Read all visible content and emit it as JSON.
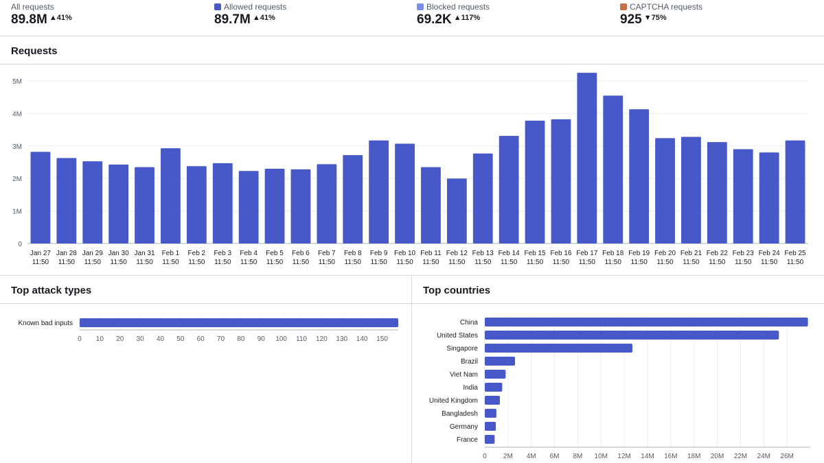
{
  "stats": [
    {
      "label": "All requests",
      "value": "89.8M",
      "change": "41%",
      "direction": "up",
      "swatch": null
    },
    {
      "label": "Allowed requests",
      "value": "89.7M",
      "change": "41%",
      "direction": "up",
      "swatch": "#4759c9"
    },
    {
      "label": "Blocked requests",
      "value": "69.2K",
      "change": "117%",
      "direction": "up",
      "swatch": "#7d8ee6"
    },
    {
      "label": "CAPTCHA requests",
      "value": "925",
      "change": "75%",
      "direction": "down",
      "swatch": "#c8714a"
    }
  ],
  "requests_panel": {
    "title": "Requests"
  },
  "attack_panel": {
    "title": "Top attack types"
  },
  "countries_panel": {
    "title": "Top countries"
  },
  "chart_data": [
    {
      "type": "bar",
      "title": "Requests",
      "ylabel": "",
      "xlabel": "",
      "ylim": [
        0,
        5000000
      ],
      "yticks": [
        0,
        1000000,
        2000000,
        3000000,
        4000000,
        5000000
      ],
      "ytick_labels": [
        "0",
        "1M",
        "2M",
        "3M",
        "4M",
        "5M"
      ],
      "color": "#4759c9",
      "time_label": "11:50",
      "categories": [
        "Jan 27",
        "Jan 28",
        "Jan 29",
        "Jan 30",
        "Jan 31",
        "Feb 1",
        "Feb 2",
        "Feb 3",
        "Feb 4",
        "Feb 5",
        "Feb 6",
        "Feb 7",
        "Feb 8",
        "Feb 9",
        "Feb 10",
        "Feb 11",
        "Feb 12",
        "Feb 13",
        "Feb 14",
        "Feb 15",
        "Feb 16",
        "Feb 17",
        "Feb 18",
        "Feb 19",
        "Feb 20",
        "Feb 21",
        "Feb 22",
        "Feb 23",
        "Feb 24",
        "Feb 25"
      ],
      "values": [
        2820000,
        2630000,
        2530000,
        2430000,
        2350000,
        2930000,
        2380000,
        2470000,
        2230000,
        2300000,
        2280000,
        2440000,
        2720000,
        3170000,
        3070000,
        2350000,
        2000000,
        2770000,
        3310000,
        3780000,
        3820000,
        5250000,
        4550000,
        4130000,
        3240000,
        3280000,
        3120000,
        2900000,
        2800000,
        3170000
      ]
    },
    {
      "type": "bar",
      "orientation": "horizontal",
      "title": "Top attack types",
      "color": "#4759c9",
      "xlim": [
        0,
        158
      ],
      "xticks": [
        0,
        10,
        20,
        30,
        40,
        50,
        60,
        70,
        80,
        90,
        100,
        110,
        120,
        130,
        140,
        150
      ],
      "categories": [
        "Known bad inputs"
      ],
      "values": [
        158
      ]
    },
    {
      "type": "bar",
      "orientation": "horizontal",
      "title": "Top countries",
      "color": "#4759c9",
      "xlim": [
        0,
        28000000
      ],
      "xticks": [
        0,
        2000000,
        4000000,
        6000000,
        8000000,
        10000000,
        12000000,
        14000000,
        16000000,
        18000000,
        20000000,
        22000000,
        24000000,
        26000000
      ],
      "xtick_labels": [
        "0",
        "2M",
        "4M",
        "6M",
        "8M",
        "10M",
        "12M",
        "14M",
        "16M",
        "18M",
        "20M",
        "22M",
        "24M",
        "26M"
      ],
      "categories": [
        "China",
        "United States",
        "Singapore",
        "Brazil",
        "Viet Nam",
        "India",
        "United Kingdom",
        "Bangladesh",
        "Germany",
        "France"
      ],
      "values": [
        27800000,
        25300000,
        12700000,
        2600000,
        1800000,
        1500000,
        1300000,
        1000000,
        950000,
        850000
      ]
    }
  ]
}
